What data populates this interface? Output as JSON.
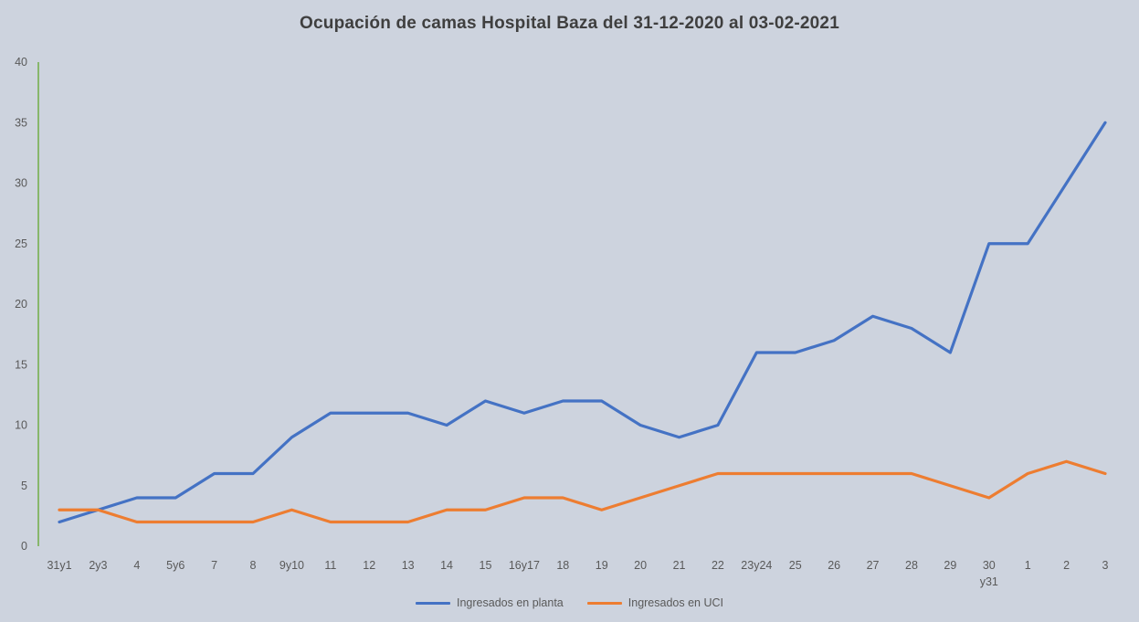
{
  "title": "Ocupación de camas Hospital Baza del 31-12-2020 al 03-02-2021",
  "colors": {
    "background": "#cdd3de",
    "title": "#3f3f3f",
    "axis_line": "#70ad47",
    "tick_text": "#595959",
    "planta": "#4472c4",
    "uci": "#ed7d31"
  },
  "legend": [
    {
      "label": "Ingresados en planta",
      "color": "#4472c4"
    },
    {
      "label": "Ingresados en UCI",
      "color": "#ed7d31"
    }
  ],
  "chart_data": {
    "type": "line",
    "title": "Ocupación de camas Hospital Baza del 31-12-2020 al 03-02-2021",
    "categories": [
      "31y1",
      "2y3",
      "4",
      "5y6",
      "7",
      "8",
      "9y10",
      "11",
      "12",
      "13",
      "14",
      "15",
      "16y17",
      "18",
      "19",
      "20",
      "21",
      "22",
      "23y24",
      "25",
      "26",
      "27",
      "28",
      "29",
      "30 y31",
      "1",
      "2",
      "3"
    ],
    "series": [
      {
        "name": "Ingresados en planta",
        "color": "#4472c4",
        "values": [
          2,
          3,
          4,
          4,
          6,
          6,
          9,
          11,
          11,
          11,
          10,
          12,
          11,
          12,
          12,
          10,
          9,
          10,
          16,
          16,
          17,
          19,
          18,
          16,
          25,
          25,
          30,
          35
        ]
      },
      {
        "name": "Ingresados en UCI",
        "color": "#ed7d31",
        "values": [
          3,
          3,
          2,
          2,
          2,
          2,
          3,
          2,
          2,
          2,
          3,
          3,
          4,
          4,
          3,
          4,
          5,
          6,
          6,
          6,
          6,
          6,
          6,
          5,
          4,
          6,
          7,
          6
        ]
      }
    ],
    "ylim": [
      0,
      40
    ],
    "yticks": [
      0,
      5,
      10,
      15,
      20,
      25,
      30,
      35,
      40
    ],
    "grid": false,
    "legend_position": "bottom"
  }
}
